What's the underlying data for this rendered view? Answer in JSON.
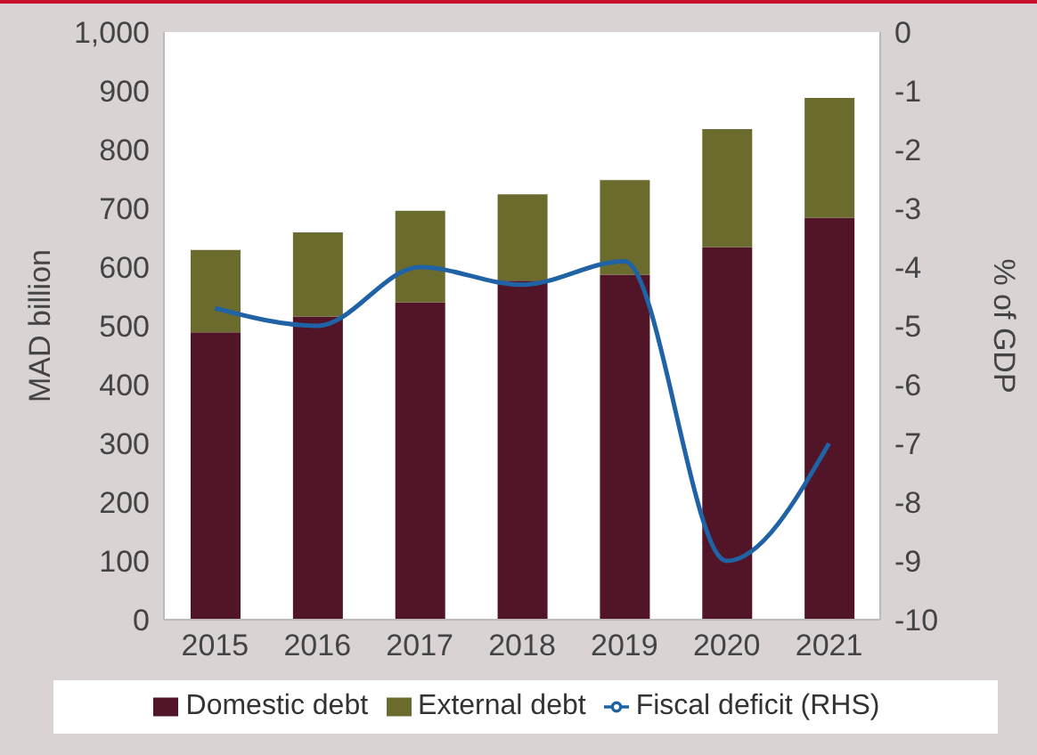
{
  "chart_data": {
    "type": "bar",
    "stacked": true,
    "categories": [
      "2015",
      "2016",
      "2017",
      "2018",
      "2019",
      "2020",
      "2021"
    ],
    "series": [
      {
        "name": "Domestic debt",
        "color": "#521427",
        "values": [
          489,
          516,
          540,
          577,
          587,
          634,
          684
        ]
      },
      {
        "name": "External debt",
        "color": "#6b6b2e",
        "values": [
          140,
          143,
          156,
          147,
          161,
          201,
          204
        ]
      },
      {
        "name": "Fiscal deficit (RHS)",
        "type": "line",
        "axis": "y2",
        "color": "#1f63a6",
        "values": [
          -4.7,
          -5.0,
          -4.0,
          -4.3,
          -3.9,
          -9.0,
          -7.0
        ]
      }
    ],
    "ylabel": "MAD billion",
    "y2label": "% of GDP",
    "ylim": [
      0,
      1000
    ],
    "yticks": [
      0,
      100,
      200,
      300,
      400,
      500,
      600,
      700,
      800,
      900,
      {
        "value": 1000,
        "label": "1,000"
      }
    ],
    "y2lim": [
      -10,
      0
    ],
    "y2ticks": [
      -10,
      -9,
      -8,
      -7,
      -6,
      -5,
      -4,
      -3,
      -2,
      -1,
      0
    ],
    "legend": "bottom",
    "marker": "none",
    "line_style": "solid"
  }
}
